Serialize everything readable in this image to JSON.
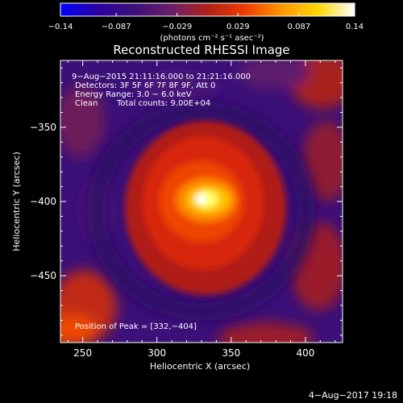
{
  "chart_data": {
    "type": "heatmap",
    "title": "Reconstructed RHESSI Image",
    "xlabel": "Heliocentric X (arcsec)",
    "ylabel": "Heliocentric Y (arcsec)",
    "xlim": [
      235,
      425
    ],
    "ylim": [
      -495,
      -305
    ],
    "x_ticks": [
      250,
      300,
      350,
      400
    ],
    "y_ticks": [
      -350,
      -400,
      -450
    ],
    "x_tick_labels": [
      "250",
      "300",
      "350",
      "400"
    ],
    "y_tick_labels": [
      "−350",
      "−400",
      "−450"
    ],
    "colorbar": {
      "min": -0.14,
      "max": 0.14,
      "ticks": [
        -0.14,
        -0.087,
        -0.029,
        0.029,
        0.087,
        0.14
      ],
      "tick_labels": [
        "−0.14",
        "−0.087",
        "−0.029",
        "0.029",
        "0.087",
        "0.14"
      ],
      "unit_label": "(photons cm⁻² s⁻¹ asec⁻²)",
      "colormap": [
        "#0000ff",
        "#2a00a0",
        "#3c0f7a",
        "#6a1f6a",
        "#b0201a",
        "#ee3a00",
        "#ff9500",
        "#ffd800",
        "#ffffff"
      ]
    },
    "annotations": {
      "time_range": "9−Aug−2015 21:11:16.000 to 21:21:16.000",
      "detectors": "Detectors: 3F 5F 6F 7F 8F 9F, Att 0",
      "energy": "Energy Range: 3.0 − 6.0 keV",
      "method": "Clean",
      "counts": "Total counts: 9.00E+04",
      "peak": "Position of Peak = [332,−404]"
    },
    "peak": {
      "x": 332,
      "y": -404
    },
    "footer_date": "4−Aug−2017 19:18"
  }
}
